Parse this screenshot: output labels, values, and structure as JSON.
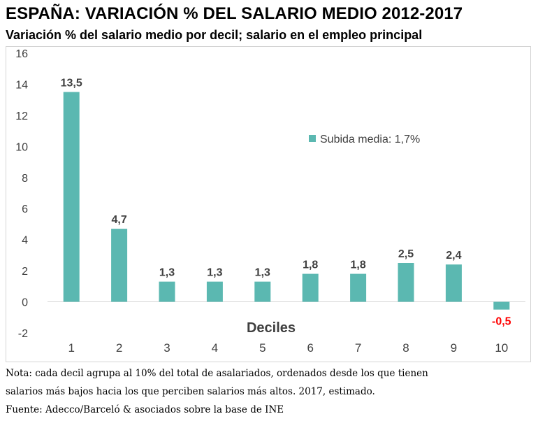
{
  "header": {
    "title": "ESPAÑA: VARIACIÓN % DEL SALARIO MEDIO 2012-2017",
    "subtitle": "Variación % del salario medio por decil; salario en el empleo principal"
  },
  "footer": {
    "note_line1": "Nota: cada decil agrupa al 10% del total de asalariados, ordenados desde los que tienen",
    "note_line2": "salarios más bajos hacia los que perciben salarios más altos. 2017, estimado.",
    "source": "Fuente: Adecco/Barceló & asociados sobre la base de INE"
  },
  "colors": {
    "bar": "#5bb8b1",
    "negative_label": "#ff0000"
  },
  "chart_data": {
    "type": "bar",
    "categories": [
      "1",
      "2",
      "3",
      "4",
      "5",
      "6",
      "7",
      "8",
      "9",
      "10"
    ],
    "values": [
      13.5,
      4.7,
      1.3,
      1.3,
      1.3,
      1.8,
      1.8,
      2.5,
      2.4,
      -0.5
    ],
    "data_labels": [
      "13,5",
      "4,7",
      "1,3",
      "1,3",
      "1,3",
      "1,8",
      "1,8",
      "2,5",
      "2,4",
      "-0,5"
    ],
    "series": [
      {
        "name": "Subida media: 1,7%",
        "values": [
          13.5,
          4.7,
          1.3,
          1.3,
          1.3,
          1.8,
          1.8,
          2.5,
          2.4,
          -0.5
        ]
      }
    ],
    "xlabel": "Deciles",
    "ylabel": "",
    "ylim": [
      -2,
      16
    ],
    "yticks": [
      "-2",
      "0",
      "2",
      "4",
      "6",
      "8",
      "10",
      "12",
      "14",
      "16"
    ],
    "grid": false,
    "legend_position": "top-right"
  }
}
